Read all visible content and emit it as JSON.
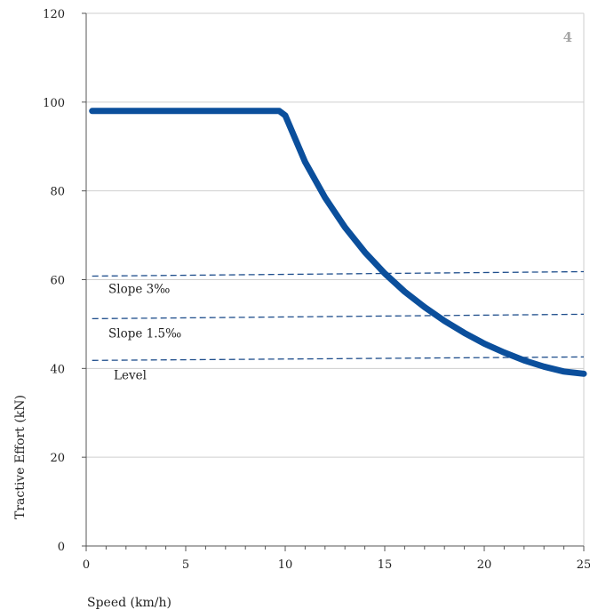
{
  "chart_data": {
    "type": "line",
    "panel_number": "4",
    "xlabel": "Speed (km/h)",
    "ylabel": "Tractive Effort (kN)",
    "xlim": [
      0,
      25
    ],
    "ylim": [
      0,
      120
    ],
    "x_ticks": [
      "0",
      "5",
      "10",
      "15",
      "20",
      "25"
    ],
    "y_ticks": [
      "0",
      "20",
      "40",
      "60",
      "80",
      "100",
      "120"
    ],
    "grid": "horizontal",
    "colors": {
      "curve": "#0b4f9c",
      "dashed": "#1f4e8c",
      "grid": "#cfcfcf",
      "axis": "#555555"
    },
    "series": [
      {
        "style": "solid-thick",
        "x": [
          0.3,
          9.7,
          10.0,
          11.0,
          12.0,
          13.0,
          14.0,
          15.0,
          16.0,
          17.0,
          18.0,
          19.0,
          20.0,
          21.0,
          22.0,
          23.0,
          24.0,
          25.0
        ],
        "y": [
          98,
          98,
          97,
          86.5,
          78.5,
          71.8,
          66.2,
          61.4,
          57.3,
          53.8,
          50.7,
          48.0,
          45.6,
          43.6,
          41.8,
          40.4,
          39.3,
          38.8
        ]
      },
      {
        "style": "dashed",
        "label": "Slope 3‰",
        "x": [
          0.3,
          25
        ],
        "y": [
          60.8,
          61.8
        ]
      },
      {
        "style": "dashed",
        "label": "Slope 1.5‰",
        "x": [
          0.3,
          25
        ],
        "y": [
          51.2,
          52.2
        ]
      },
      {
        "style": "dashed",
        "label": "Level",
        "x": [
          0.3,
          25
        ],
        "y": [
          41.8,
          42.6
        ]
      }
    ]
  }
}
